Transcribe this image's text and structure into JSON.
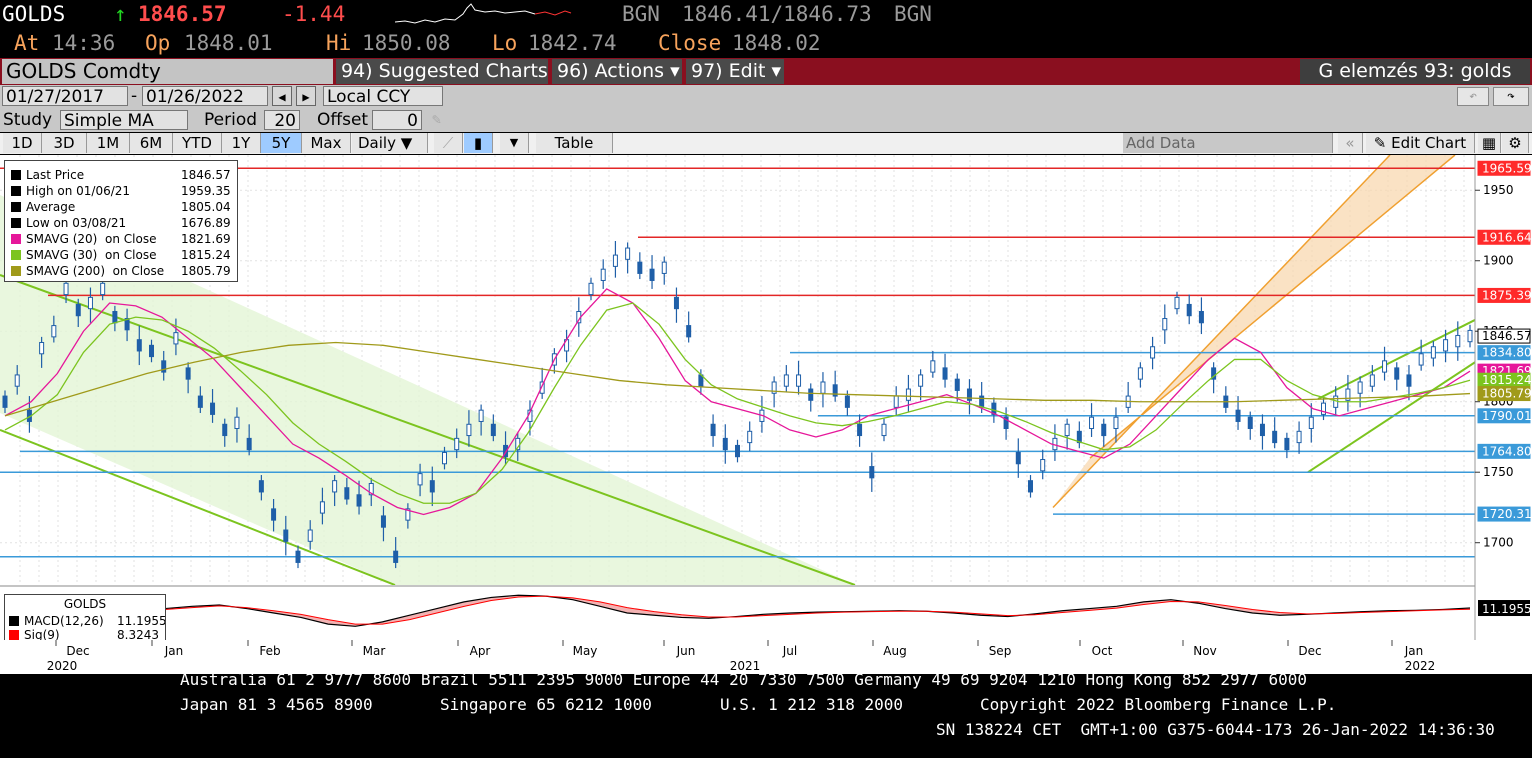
{
  "header": {
    "ticker": "GOLDS",
    "arrow": "↑",
    "last": "1846.57",
    "change": "-1.44",
    "bgn1": "BGN",
    "bid_ask": "1846.41/1846.73",
    "bgn2": "BGN",
    "at_label": "At",
    "at_value": "14:36",
    "op_label": "Op",
    "op_value": "1848.01",
    "hi_label": "Hi",
    "hi_value": "1850.08",
    "lo_label": "Lo",
    "lo_value": "1842.74",
    "close_label": "Close",
    "close_value": "1848.02"
  },
  "toolbar": {
    "security": "GOLDS Comdty",
    "suggested": "94) Suggested Charts",
    "actions": "96) Actions ▾",
    "edit": "97) Edit ▾",
    "right_title": "G elemzés 93: golds",
    "start_date": "01/27/2017",
    "end_date": "01/26/2022",
    "dash": "-",
    "currency": "Local CCY",
    "study_label": "Study",
    "study_value": "Simple MA",
    "period_label": "Period",
    "period_value": "20",
    "offset_label": "Offset",
    "offset_value": "0",
    "ranges": [
      "1D",
      "3D",
      "1M",
      "6M",
      "YTD",
      "1Y",
      "5Y",
      "Max"
    ],
    "selected_range": "5Y",
    "frequency": "Daily ▼",
    "table": "Table",
    "add_data": "Add Data",
    "edit_chart": "Edit Chart"
  },
  "legend": {
    "rows": [
      {
        "label": "Last Price",
        "value": "1846.57",
        "color": "#000000"
      },
      {
        "label": "High on 01/06/21",
        "value": "1959.35",
        "color": "#000000"
      },
      {
        "label": "Average",
        "value": "1805.04",
        "color": "#000000"
      },
      {
        "label": "Low on 03/08/21",
        "value": "1676.89",
        "color": "#000000"
      },
      {
        "label": "SMAVG (20)  on Close",
        "value": "1821.69",
        "color": "#e6179a"
      },
      {
        "label": "SMAVG (30)  on Close",
        "value": "1815.24",
        "color": "#7cc41f"
      },
      {
        "label": "SMAVG (200)  on Close",
        "value": "1805.79",
        "color": "#a09a1a"
      }
    ]
  },
  "macd_legend": {
    "title": "GOLDS",
    "rows": [
      {
        "label": "MACD(12,26)",
        "value": "11.1955",
        "color": "#000000"
      },
      {
        "label": "Sig(9)",
        "value": "8.3243",
        "color": "#ff0000"
      }
    ],
    "right_label": "11.1955"
  },
  "chart_data": {
    "type": "line",
    "title": "GOLDS Comdty",
    "ylim": [
      1670,
      1975
    ],
    "y_ticks": [
      "1950",
      "1900",
      "1850",
      "1800",
      "1750",
      "1700"
    ],
    "months": [
      "Dec",
      "Jan",
      "Feb",
      "Mar",
      "Apr",
      "May",
      "Jun",
      "Jul",
      "Aug",
      "Sep",
      "Oct",
      "Nov",
      "Dec",
      "Jan"
    ],
    "years": [
      "2020",
      "2021",
      "2022"
    ],
    "price_labels": [
      {
        "value": 1965.59,
        "text": "1965.59",
        "color": "#ff2a2a"
      },
      {
        "value": 1916.64,
        "text": "1916.64",
        "color": "#ff2a2a"
      },
      {
        "value": 1875.39,
        "text": "1875.39",
        "color": "#ff2a2a"
      },
      {
        "value": 1846.57,
        "text": "1846.57",
        "color": "#000000"
      },
      {
        "value": 1834.8,
        "text": "1834.80",
        "color": "#3a9ad9"
      },
      {
        "value": 1821.69,
        "text": "1821.69",
        "color": "#e6179a"
      },
      {
        "value": 1815.24,
        "text": "1815.24",
        "color": "#7cc41f"
      },
      {
        "value": 1805.79,
        "text": "1805.79",
        "color": "#a09a1a"
      },
      {
        "value": 1790.01,
        "text": "1790.01",
        "color": "#3a9ad9"
      },
      {
        "value": 1764.8,
        "text": "1764.80",
        "color": "#3a9ad9"
      },
      {
        "value": 1720.31,
        "text": "1720.31",
        "color": "#3a9ad9"
      }
    ],
    "series": [
      {
        "name": "Last Price",
        "color": "#2e6db3",
        "values": [
          1800,
          1815,
          1790,
          1838,
          1850,
          1880,
          1865,
          1870,
          1880,
          1860,
          1855,
          1840,
          1836,
          1825,
          1845,
          1820,
          1800,
          1795,
          1780,
          1785,
          1770,
          1740,
          1720,
          1705,
          1690,
          1705,
          1725,
          1740,
          1735,
          1730,
          1738,
          1715,
          1690,
          1720,
          1745,
          1740,
          1760,
          1770,
          1780,
          1790,
          1780,
          1765,
          1770,
          1790,
          1810,
          1830,
          1840,
          1860,
          1880,
          1890,
          1900,
          1905,
          1895,
          1890,
          1895,
          1870,
          1850,
          1815,
          1780,
          1770,
          1765,
          1775,
          1790,
          1810,
          1815,
          1815,
          1805,
          1810,
          1808,
          1800,
          1780,
          1750,
          1780,
          1800,
          1805,
          1815,
          1825,
          1820,
          1812,
          1805,
          1800,
          1795,
          1785,
          1760,
          1740,
          1755,
          1770,
          1780,
          1775,
          1785,
          1780,
          1785,
          1800,
          1820,
          1835,
          1855,
          1870,
          1865,
          1860,
          1820,
          1800,
          1790,
          1785,
          1780,
          1775,
          1770,
          1775,
          1785,
          1795,
          1800,
          1805,
          1810,
          1815,
          1825,
          1820,
          1815,
          1830,
          1835,
          1840,
          1843,
          1846.57
        ]
      },
      {
        "name": "SMAVG (20)  on Close",
        "color": "#e6179a",
        "values": [
          1790,
          1800,
          1820,
          1850,
          1870,
          1868,
          1860,
          1845,
          1830,
          1810,
          1790,
          1770,
          1760,
          1748,
          1735,
          1725,
          1720,
          1725,
          1735,
          1760,
          1790,
          1830,
          1860,
          1880,
          1870,
          1845,
          1815,
          1800,
          1795,
          1790,
          1780,
          1775,
          1780,
          1790,
          1795,
          1800,
          1805,
          1798,
          1790,
          1780,
          1770,
          1765,
          1760,
          1770,
          1790,
          1810,
          1830,
          1845,
          1835,
          1810,
          1795,
          1790,
          1795,
          1800,
          1805,
          1810,
          1821.69
        ]
      },
      {
        "name": "SMAVG (30)  on Close",
        "color": "#7cc41f",
        "values": [
          1780,
          1790,
          1805,
          1835,
          1855,
          1860,
          1858,
          1850,
          1838,
          1822,
          1805,
          1785,
          1770,
          1758,
          1745,
          1735,
          1728,
          1728,
          1735,
          1752,
          1778,
          1810,
          1840,
          1865,
          1870,
          1855,
          1830,
          1812,
          1802,
          1796,
          1790,
          1785,
          1783,
          1786,
          1790,
          1795,
          1800,
          1798,
          1793,
          1786,
          1778,
          1772,
          1766,
          1768,
          1780,
          1798,
          1815,
          1830,
          1830,
          1815,
          1805,
          1800,
          1800,
          1803,
          1806,
          1810,
          1815.24
        ]
      },
      {
        "name": "SMAVG (200)  on Close",
        "color": "#a09a1a",
        "values": [
          1790,
          1800,
          1810,
          1820,
          1828,
          1835,
          1840,
          1842,
          1840,
          1835,
          1830,
          1825,
          1820,
          1815,
          1812,
          1810,
          1808,
          1806,
          1805,
          1804,
          1803,
          1802,
          1801,
          1801,
          1800,
          1800,
          1800,
          1801,
          1802,
          1803,
          1804,
          1805.79
        ]
      }
    ],
    "macd": {
      "type": "area",
      "series": [
        {
          "name": "MACD(12,26)",
          "color": "#000000",
          "values": [
            10,
            15,
            18,
            10,
            0,
            -10,
            -25,
            -30,
            -20,
            -5,
            10,
            25,
            35,
            40,
            38,
            30,
            15,
            0,
            -5,
            -10,
            -12,
            -8,
            -3,
            0,
            2,
            3,
            4,
            5,
            4,
            0,
            -5,
            -8,
            -2,
            5,
            10,
            15,
            25,
            30,
            22,
            10,
            0,
            -5,
            -3,
            0,
            3,
            5,
            6,
            8,
            11.1955
          ]
        },
        {
          "name": "Sig(9)",
          "color": "#ff0000",
          "values": [
            8,
            12,
            16,
            12,
            5,
            -3,
            -15,
            -25,
            -25,
            -15,
            0,
            15,
            28,
            36,
            38,
            34,
            25,
            12,
            3,
            -4,
            -9,
            -9,
            -6,
            -3,
            0,
            2,
            3,
            4,
            4,
            2,
            -2,
            -6,
            -4,
            1,
            6,
            11,
            19,
            26,
            25,
            17,
            8,
            1,
            -2,
            -1,
            1,
            3,
            5,
            7,
            8.3243
          ]
        }
      ]
    },
    "legend_position": "top-left",
    "grid": true
  },
  "footer": {
    "line1": "Australia 61 2 9777 8600 Brazil 5511 2395 9000 Europe 44 20 7330 7500 Germany 49 69 9204 1210 Hong Kong 852 2977 6000",
    "line2a": "Japan 81 3 4565 8900",
    "line2b": "Singapore 65 6212 1000",
    "line2c": "U.S. 1 212 318 2000",
    "line2d": "Copyright 2022 Bloomberg Finance L.P.",
    "line3": "SN 138224 CET  GMT+1:00 G375-6044-173 26-Jan-2022 14:36:30"
  }
}
